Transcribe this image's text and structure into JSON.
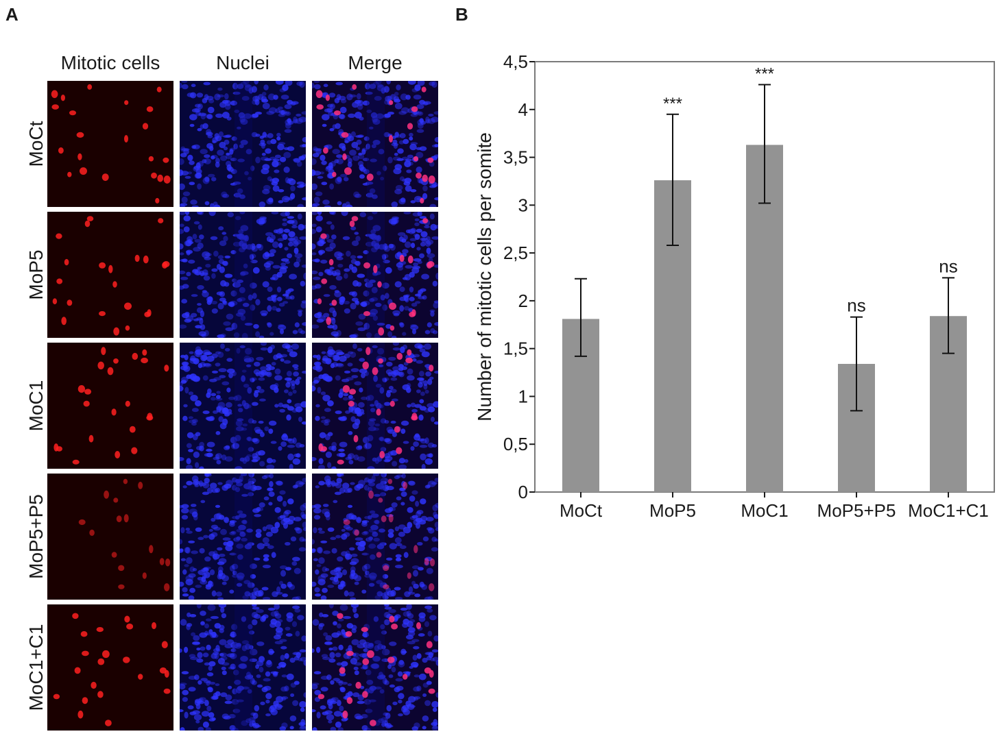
{
  "panel_a": {
    "letter": "A",
    "columns": [
      "Mitotic cells",
      "Nuclei",
      "Merge"
    ],
    "rows": [
      "MoCt",
      "MoP5",
      "MoC1",
      "MoP5+P5",
      "MoC1+C1"
    ]
  },
  "panel_b": {
    "letter": "B"
  },
  "colors": {
    "bar": "#939393",
    "mitotic": "#ff2020",
    "nuclei": "#1a1aff",
    "merge_dot": "#ff3080"
  },
  "chart_data": {
    "type": "bar",
    "categories": [
      "MoCt",
      "MoP5",
      "MoC1",
      "MoP5+P5",
      "MoC1+C1"
    ],
    "values": [
      1.81,
      3.26,
      3.63,
      1.34,
      1.84
    ],
    "error_low": [
      1.42,
      2.58,
      3.02,
      0.85,
      1.45
    ],
    "error_high": [
      2.23,
      3.95,
      4.26,
      1.83,
      2.24
    ],
    "significance": [
      "",
      "***",
      "***",
      "ns",
      "ns"
    ],
    "ylabel": "Number of mitotic cells per somite",
    "xlabel": "",
    "ylim": [
      0,
      4.5
    ],
    "yticks": [
      "0",
      "0,5",
      "1",
      "1,5",
      "2",
      "2,5",
      "3",
      "3,5",
      "4",
      "4,5"
    ],
    "grid": false
  }
}
